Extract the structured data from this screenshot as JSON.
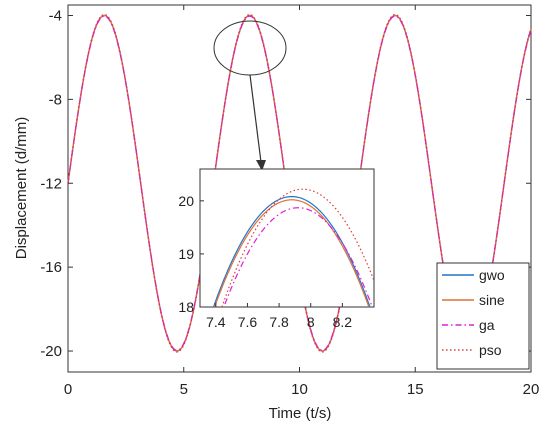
{
  "chart_data": {
    "type": "line",
    "title": "",
    "xlabel": "Time (t/s)",
    "ylabel": "Displacement (d/mm)",
    "xlim": [
      0,
      20
    ],
    "ylim": [
      -21,
      -3.5
    ],
    "xticks": [
      "0",
      "5",
      "10",
      "15",
      "20"
    ],
    "yticks": [
      "-4",
      "-8",
      "-12",
      "-16",
      "-20"
    ],
    "grid": false,
    "legend_position": "bottom-right",
    "series": [
      {
        "name": "gwo",
        "color": "#1f77c9",
        "style": "solid"
      },
      {
        "name": "sine",
        "color": "#e0703a",
        "style": "solid"
      },
      {
        "name": "ga",
        "color": "#e020d0",
        "style": "dash-dot"
      },
      {
        "name": "pso",
        "color": "#e03a3a",
        "style": "dotted"
      }
    ],
    "signal": {
      "period": 6.28,
      "min": -20,
      "max": -4,
      "start": -12
    },
    "inset": {
      "xlim": [
        7.3,
        8.4
      ],
      "ylim": [
        18,
        20.6
      ],
      "xticks": [
        "7.4",
        "7.6",
        "7.8",
        "8",
        "8.2"
      ],
      "yticks": [
        "20",
        "19",
        "18"
      ],
      "peaks": {
        "gwo": 20.08,
        "sine": 20.02,
        "ga": 19.87,
        "pso": 20.22
      },
      "peak_x": {
        "gwo": 7.88,
        "sine": 7.88,
        "ga": 7.92,
        "pso": 7.95
      }
    }
  }
}
